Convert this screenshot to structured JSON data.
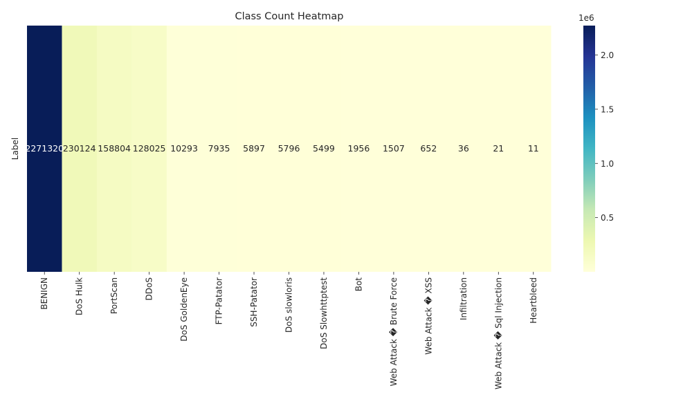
{
  "chart_data": {
    "type": "heatmap",
    "title": "Class Count Heatmap",
    "xlabel": "",
    "ylabel": "Label",
    "categories": [
      "BENIGN",
      "DoS Hulk",
      "PortScan",
      "DDoS",
      "DoS GoldenEye",
      "FTP-Patator",
      "SSH-Patator",
      "DoS slowloris",
      "DoS Slowhttptest",
      "Bot",
      "Web Attack � Brute Force",
      "Web Attack � XSS",
      "Infiltration",
      "Web Attack � Sql Injection",
      "Heartbleed"
    ],
    "values": [
      2271320,
      230124,
      158804,
      128025,
      10293,
      7935,
      5897,
      5796,
      5499,
      1956,
      1507,
      652,
      36,
      21,
      11
    ],
    "value_labels": [
      "2271320",
      "230124",
      "158804",
      "128025",
      "10293",
      "7935",
      "5897",
      "5796",
      "5499",
      "1956",
      "1507",
      "652",
      "36",
      "21",
      "11"
    ],
    "colorbar": {
      "range": [
        11,
        2271320
      ],
      "ticks": [
        0.5,
        1.0,
        1.5,
        2.0
      ],
      "tick_labels": [
        "0.5",
        "1.0",
        "1.5",
        "2.0"
      ],
      "multiplier": "1e6",
      "colormap": "YlGnBu"
    }
  }
}
